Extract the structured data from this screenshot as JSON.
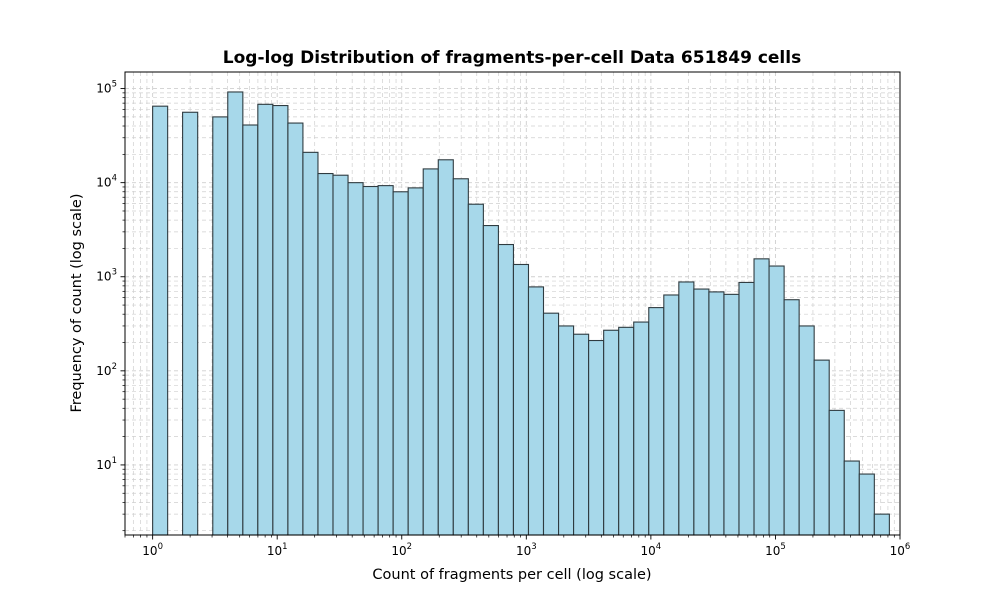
{
  "chart_data": {
    "type": "bar",
    "title": "Log-log Distribution of fragments-per-cell Data 651849 cells",
    "xlabel": "Count of fragments per cell (log scale)",
    "ylabel": "Frequency of count (log scale)",
    "x_scale": "log",
    "y_scale": "log",
    "xlim": [
      0.6,
      1000000
    ],
    "ylim": [
      1.8,
      150000
    ],
    "grid": true,
    "x_ticks": [
      {
        "base": "10",
        "exp": "0",
        "value": 1
      },
      {
        "base": "10",
        "exp": "1",
        "value": 10
      },
      {
        "base": "10",
        "exp": "2",
        "value": 100
      },
      {
        "base": "10",
        "exp": "3",
        "value": 1000
      },
      {
        "base": "10",
        "exp": "4",
        "value": 10000
      },
      {
        "base": "10",
        "exp": "5",
        "value": 100000
      },
      {
        "base": "10",
        "exp": "6",
        "value": 1000000
      }
    ],
    "y_ticks": [
      {
        "base": "10",
        "exp": "1",
        "value": 10
      },
      {
        "base": "10",
        "exp": "2",
        "value": 100
      },
      {
        "base": "10",
        "exp": "3",
        "value": 1000
      },
      {
        "base": "10",
        "exp": "4",
        "value": 10000
      },
      {
        "base": "10",
        "exp": "5",
        "value": 100000
      }
    ],
    "bin_edges": [
      1,
      1.32,
      1.74,
      2.3,
      3.04,
      4.01,
      5.3,
      6.99,
      9.23,
      12.19,
      16.09,
      21.25,
      28.06,
      37.05,
      48.92,
      64.6,
      85.3,
      112.6,
      148.7,
      196.4,
      259.3,
      342.4,
      452.1,
      597.0,
      788.3,
      1041,
      1374,
      1815,
      2396,
      3164,
      4178,
      5516,
      7284,
      9618,
      12700,
      16770,
      22140,
      29240,
      38610,
      50980,
      67310,
      88880,
      117400,
      155000,
      204600,
      270200,
      356800,
      471200,
      622200,
      821600
    ],
    "values": [
      65000,
      0,
      56000,
      0,
      50000,
      92000,
      41000,
      68000,
      66000,
      43000,
      21000,
      12500,
      12000,
      10000,
      9100,
      9300,
      8000,
      8800,
      14000,
      17500,
      11000,
      5900,
      3500,
      2200,
      1350,
      780,
      410,
      300,
      245,
      210,
      270,
      290,
      330,
      470,
      640,
      880,
      740,
      690,
      650,
      870,
      1550,
      1300,
      570,
      300,
      130,
      38,
      11,
      8,
      3
    ],
    "colors": {
      "bar_fill": "#a7d8ea",
      "bar_edge": "#2f3b40",
      "grid": "#cfcfcf"
    }
  }
}
